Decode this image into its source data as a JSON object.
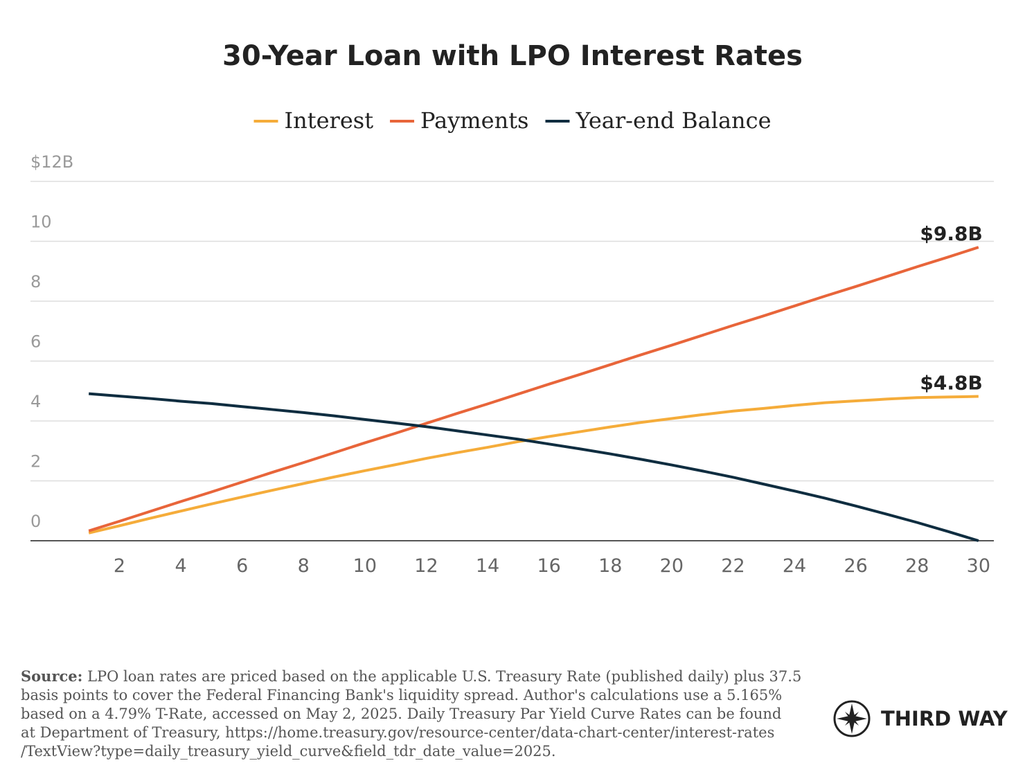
{
  "chart_data": {
    "type": "line",
    "title": "30-Year Loan with LPO Interest Rates",
    "x": [
      1,
      2,
      3,
      4,
      5,
      6,
      7,
      8,
      9,
      10,
      11,
      12,
      13,
      14,
      15,
      16,
      17,
      18,
      19,
      20,
      21,
      22,
      23,
      24,
      25,
      26,
      27,
      28,
      29,
      30
    ],
    "series": [
      {
        "name": "Interest",
        "color": "#f5ac3a",
        "values": [
          0.26,
          0.5,
          0.75,
          0.99,
          1.23,
          1.46,
          1.69,
          1.91,
          2.13,
          2.34,
          2.54,
          2.75,
          2.94,
          3.12,
          3.31,
          3.48,
          3.64,
          3.8,
          3.95,
          4.08,
          4.21,
          4.33,
          4.42,
          4.52,
          4.61,
          4.67,
          4.73,
          4.78,
          4.8,
          4.82
        ],
        "value_labels": [
          null,
          null,
          null,
          null,
          null,
          null,
          null,
          null,
          null,
          null,
          null,
          null,
          null,
          null,
          null,
          null,
          null,
          null,
          null,
          null,
          null,
          null,
          null,
          null,
          null,
          null,
          null,
          null,
          null,
          "$4.8B"
        ]
      },
      {
        "name": "Payments",
        "color": "#e8653a",
        "values": [
          0.33,
          0.65,
          0.98,
          1.31,
          1.63,
          1.96,
          2.29,
          2.61,
          2.94,
          3.27,
          3.59,
          3.92,
          4.25,
          4.57,
          4.9,
          5.23,
          5.55,
          5.88,
          6.21,
          6.53,
          6.86,
          7.19,
          7.51,
          7.84,
          8.17,
          8.49,
          8.82,
          9.15,
          9.47,
          9.8
        ],
        "value_labels": [
          null,
          null,
          null,
          null,
          null,
          null,
          null,
          null,
          null,
          null,
          null,
          null,
          null,
          null,
          null,
          null,
          null,
          null,
          null,
          null,
          null,
          null,
          null,
          null,
          null,
          null,
          null,
          null,
          null,
          "$9.8B"
        ]
      },
      {
        "name": "Year-end Balance",
        "color": "#0f2d40",
        "values": [
          4.91,
          4.83,
          4.75,
          4.66,
          4.58,
          4.48,
          4.38,
          4.28,
          4.17,
          4.05,
          3.93,
          3.81,
          3.67,
          3.53,
          3.39,
          3.23,
          3.07,
          2.9,
          2.72,
          2.53,
          2.33,
          2.12,
          1.89,
          1.66,
          1.42,
          1.16,
          0.89,
          0.61,
          0.31,
          0
        ]
      }
    ],
    "xlim": [
      -0.9,
      30.5
    ],
    "xticks": [
      2,
      4,
      6,
      8,
      10,
      12,
      14,
      16,
      18,
      20,
      22,
      24,
      26,
      28,
      30
    ],
    "ylim": [
      0,
      12
    ],
    "yticks": [
      0,
      2,
      4,
      6,
      8,
      10,
      {
        "value": 12,
        "label": "$12B"
      }
    ],
    "grid": true
  },
  "footer": {
    "source_label": "Source:",
    "source_lines": [
      " LPO loan rates are priced based on the applicable U.S. Treasury Rate (published daily) plus 37.5",
      "basis points to cover the Federal Financing Bank's liquidity spread. Author's calculations use a 5.165%",
      "based on a 4.79% T-Rate, accessed on May 2, 2025. Daily Treasury Par Yield Curve Rates can be found",
      "at Department of Treasury, https://home.treasury.gov/resource-center/data-chart-center/interest-rates",
      "/TextView?type=daily_treasury_yield_curve&field_tdr_date_value=2025."
    ],
    "logo": "THIRD WAY"
  }
}
